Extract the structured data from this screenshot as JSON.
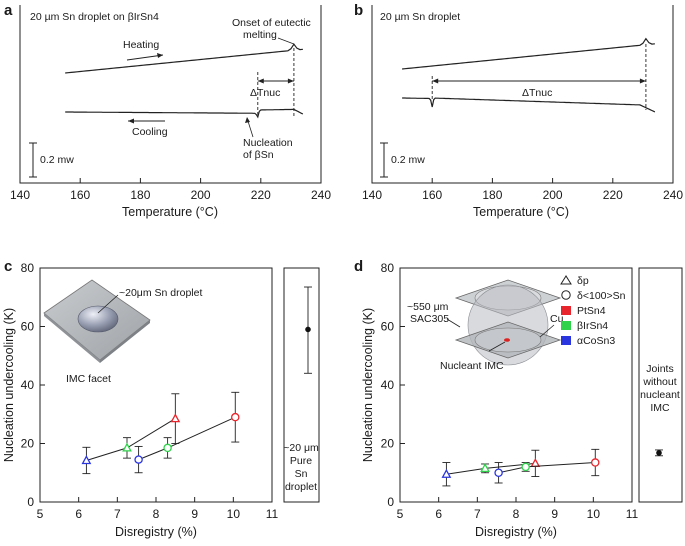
{
  "figure": {
    "panels": [
      "a",
      "b",
      "c",
      "d"
    ]
  },
  "chart_data": [
    {
      "panel": "a",
      "type": "line",
      "title": "20 µm Sn droplet on βIrSn4",
      "xlabel": "Temperature (°C)",
      "xlim": [
        140,
        240
      ],
      "xticks": [
        140,
        160,
        180,
        200,
        220,
        240
      ],
      "scale_bar_label": "0.2 mw",
      "series": [
        {
          "name": "Heating",
          "x_range": [
            155,
            234
          ],
          "feature_at": 231,
          "feature": "eutectic melting peak"
        },
        {
          "name": "Cooling",
          "x_range": [
            155,
            234
          ],
          "feature_at": 219,
          "feature": "nucleation dip"
        }
      ],
      "annotations": {
        "heating": "Heating",
        "cooling": "Cooling",
        "onset_line1": "Onset of eutectic",
        "onset_line2": "melting",
        "delta": "ΔTnuc",
        "nucleation_line1": "Nucleation",
        "nucleation_line2": "of βSn"
      }
    },
    {
      "panel": "b",
      "type": "line",
      "title": "20 µm Sn droplet",
      "xlabel": "Temperature (°C)",
      "xlim": [
        140,
        240
      ],
      "xticks": [
        140,
        160,
        180,
        200,
        220,
        240
      ],
      "scale_bar_label": "0.2 mw",
      "series": [
        {
          "name": "Heating",
          "x_range": [
            150,
            234
          ],
          "feature_at": 231,
          "feature": "melting peak"
        },
        {
          "name": "Cooling",
          "x_range": [
            150,
            234
          ],
          "feature_at": 160,
          "feature": "nucleation dip"
        }
      ],
      "annotations": {
        "delta": "ΔTnuc"
      }
    },
    {
      "panel": "c",
      "type": "scatter",
      "xlabel": "Disregistry (%)",
      "ylabel": "Nucleation undercooling (K)",
      "xlim": [
        5,
        11
      ],
      "ylim": [
        0,
        80
      ],
      "xticks": [
        5,
        6,
        7,
        8,
        9,
        10,
        11
      ],
      "yticks": [
        0,
        20,
        40,
        60,
        80
      ],
      "series": [
        {
          "name": "δp",
          "marker": "triangle",
          "points": [
            {
              "x": 6.2,
              "y": 14.2,
              "err": 4.5,
              "material": "αCoSn3"
            },
            {
              "x": 7.25,
              "y": 18.5,
              "err": 3.5,
              "material": "βIrSn4"
            },
            {
              "x": 8.5,
              "y": 28.5,
              "err": 8.5,
              "material": "PtSn4"
            }
          ]
        },
        {
          "name": "δ<100>Sn",
          "marker": "circle",
          "points": [
            {
              "x": 7.55,
              "y": 14.5,
              "err": 4.5,
              "material": "αCoSn3"
            },
            {
              "x": 8.3,
              "y": 18.5,
              "err": 3.5,
              "material": "βIrSn4"
            },
            {
              "x": 10.05,
              "y": 29,
              "err": 8.5,
              "material": "PtSn4"
            }
          ]
        }
      ],
      "side_point": {
        "y": 59,
        "err_low": 44,
        "err_high": 73.5
      },
      "annotations": {
        "droplet": "~20μm Sn droplet",
        "facet": "IMC facet",
        "side_line1": "~20 μm",
        "side_line2": "Pure",
        "side_line3": "Sn",
        "side_line4": "droplet"
      }
    },
    {
      "panel": "d",
      "type": "scatter",
      "xlabel": "Disregistry (%)",
      "ylabel": "Nucleation undercooling (K)",
      "xlim": [
        5,
        11
      ],
      "ylim": [
        0,
        80
      ],
      "xticks": [
        5,
        6,
        7,
        8,
        9,
        10,
        11
      ],
      "yticks": [
        0,
        20,
        40,
        60,
        80
      ],
      "series": [
        {
          "name": "δp",
          "marker": "triangle",
          "points": [
            {
              "x": 6.2,
              "y": 9.5,
              "err": 4,
              "material": "αCoSn3"
            },
            {
              "x": 7.2,
              "y": 11.5,
              "err": 1.5,
              "material": "βIrSn4"
            },
            {
              "x": 8.5,
              "y": 13.2,
              "err": 4.5,
              "material": "PtSn4"
            }
          ]
        },
        {
          "name": "δ<100>Sn",
          "marker": "circle",
          "points": [
            {
              "x": 7.55,
              "y": 10,
              "err": 3.5,
              "material": "αCoSn3"
            },
            {
              "x": 8.25,
              "y": 12,
              "err": 1.5,
              "material": "βIrSn4"
            },
            {
              "x": 10.05,
              "y": 13.5,
              "err": 4.5,
              "material": "PtSn4"
            }
          ]
        }
      ],
      "side_point": {
        "y": 16.8,
        "err_low": 15.8,
        "err_high": 17.8
      },
      "legend": [
        {
          "label": "PtSn4",
          "color": "#e8252c"
        },
        {
          "label": "βIrSn4",
          "color": "#2fd24a"
        },
        {
          "label": "αCoSn3",
          "color": "#2a35e0"
        }
      ],
      "annotations": {
        "sac_line1": "~550 μm",
        "sac_line2": "SAC305",
        "cu": "Cu",
        "nucleant": "Nucleant IMC",
        "side_line1": "Joints",
        "side_line2": "without",
        "side_line3": "nucleant",
        "side_line4": "IMC"
      }
    }
  ],
  "legend_text": {
    "delta_p": "δp",
    "delta_sn": "δ<100>Sn"
  },
  "colors": {
    "PtSn4": "#e8252c",
    "βIrSn4": "#2fd24a",
    "αCoSn3": "#2a35e0",
    "ink": "#1a1a1a"
  }
}
